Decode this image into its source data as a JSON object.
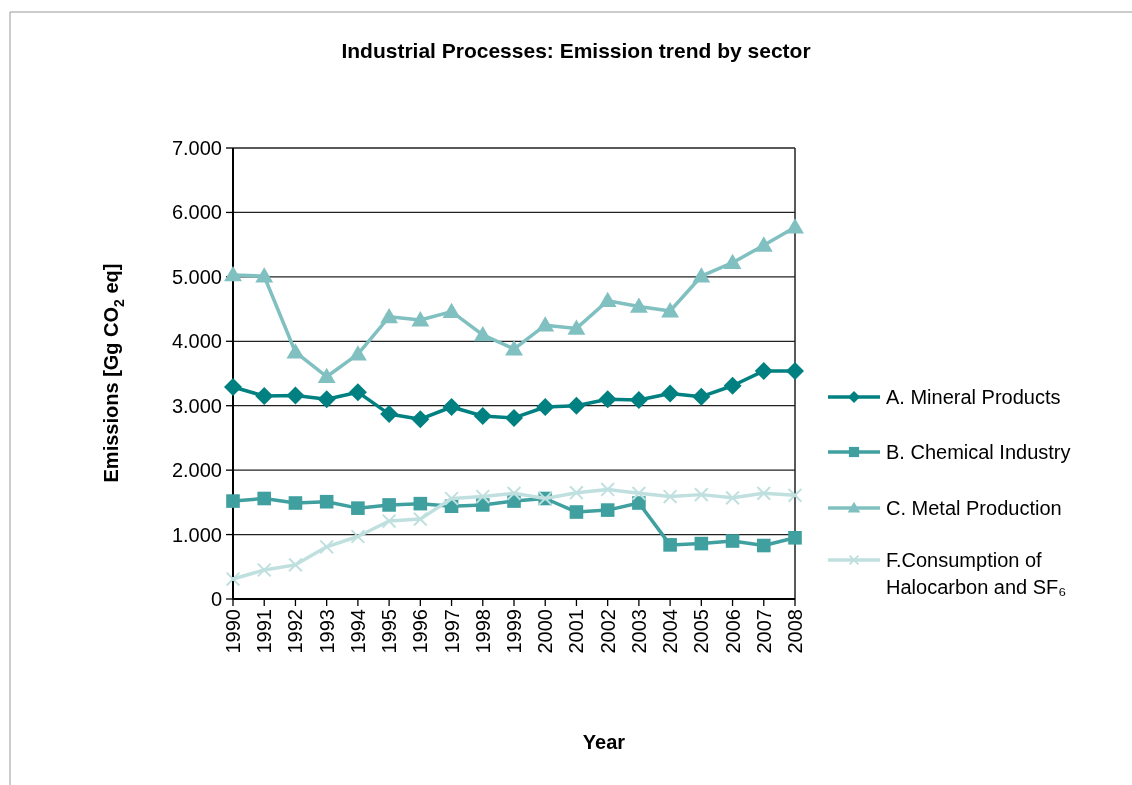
{
  "chart_data": {
    "type": "line",
    "title": "Industrial Processes: Emission trend by sector",
    "xlabel": "Year",
    "ylabel": "Emissions [Gg CO$_{2}$ eq]",
    "categories": [
      "1990",
      "1991",
      "1992",
      "1993",
      "1994",
      "1995",
      "1996",
      "1997",
      "1998",
      "1999",
      "2000",
      "2001",
      "2002",
      "2003",
      "2004",
      "2005",
      "2006",
      "2007",
      "2008"
    ],
    "series": [
      {
        "name": "A. Mineral Products",
        "color": "#008080",
        "marker": "diamond",
        "values": [
          3290,
          3150,
          3160,
          3100,
          3210,
          2870,
          2790,
          2980,
          2840,
          2810,
          2980,
          3000,
          3100,
          3090,
          3190,
          3140,
          3310,
          3540,
          3540
        ]
      },
      {
        "name": "B. Chemical Industry",
        "color": "#40a0a0",
        "marker": "square",
        "values": [
          1520,
          1560,
          1490,
          1510,
          1410,
          1460,
          1480,
          1440,
          1460,
          1520,
          1560,
          1350,
          1380,
          1490,
          840,
          860,
          900,
          830,
          950
        ]
      },
      {
        "name": "C. Metal Production",
        "color": "#80c0c0",
        "marker": "triangle",
        "values": [
          5030,
          5010,
          3830,
          3450,
          3800,
          4380,
          4330,
          4460,
          4100,
          3880,
          4250,
          4200,
          4630,
          4540,
          4470,
          5010,
          5220,
          5490,
          5770
        ]
      },
      {
        "name": "F.Consumption of Halocarbon and SF₆",
        "color": "#c0e0e0",
        "marker": "cross",
        "values": [
          310,
          450,
          530,
          810,
          970,
          1210,
          1240,
          1560,
          1590,
          1640,
          1560,
          1650,
          1700,
          1640,
          1590,
          1620,
          1570,
          1640,
          1610
        ]
      }
    ],
    "ylim": [
      0,
      7000
    ],
    "yticks": [
      0,
      {
        "value": 1000,
        "label": "1.000"
      },
      {
        "value": 2000,
        "label": "2.000"
      },
      {
        "value": 3000,
        "label": "3.000"
      },
      {
        "value": 4000,
        "label": "4.000"
      },
      {
        "value": 5000,
        "label": "5.000"
      },
      {
        "value": 6000,
        "label": "6.000"
      },
      {
        "value": 7000,
        "label": "7.000"
      }
    ],
    "grid": "y",
    "legend": "right",
    "line_style": "solid"
  }
}
